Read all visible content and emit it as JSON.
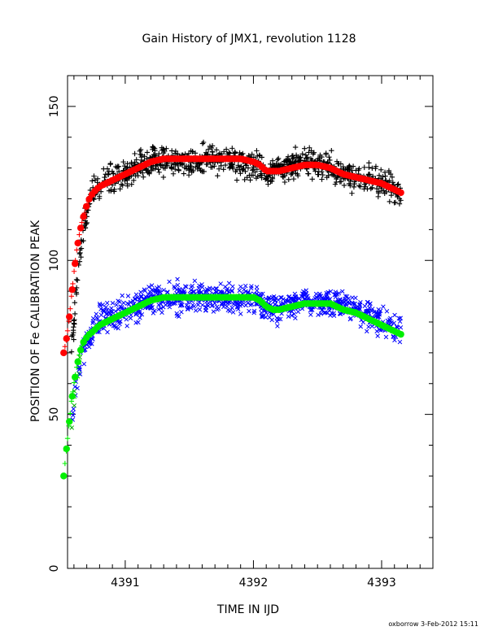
{
  "chart_data": {
    "type": "scatter",
    "title": "Gain History of JMX1, revolution 1128",
    "xlabel": "TIME IN IJD",
    "ylabel": "POSITION OF Fe CALIBRATION PEAK",
    "xlim": [
      4390.55,
      4393.4
    ],
    "ylim": [
      0,
      160
    ],
    "xticks": [
      4391,
      4392,
      4393
    ],
    "xtick_labels": [
      "4391",
      "4392",
      "4393"
    ],
    "yticks": [
      0,
      50,
      100,
      150
    ],
    "ytick_labels": [
      "0",
      "50",
      "100",
      "150"
    ],
    "grid": false,
    "legend": "none",
    "footer": "oxborrow 3-Feb-2012 15:11",
    "colors": {
      "upper_points": "#000000",
      "upper_fit": "#ff0000",
      "lower_points": "#0000ff",
      "lower_fit": "#00ee00",
      "lower_early_points": "#00aa00"
    },
    "series": [
      {
        "marker": "plus",
        "color": "#000000",
        "scatter": 3.5,
        "x": [
          4390.58,
          4390.6,
          4390.62,
          4390.64,
          4390.66,
          4390.68,
          4390.7,
          4390.72,
          4390.75,
          4390.8,
          4390.9,
          4391.0,
          4391.1,
          4391.2,
          4391.3,
          4391.4,
          4391.5,
          4391.6,
          4391.7,
          4391.8,
          4391.9,
          4392.0,
          4392.05,
          4392.1,
          4392.15,
          4392.2,
          4392.3,
          4392.4,
          4392.5,
          4392.6,
          4392.7,
          4392.8,
          4392.9,
          4393.0,
          4393.1,
          4393.15
        ],
        "y": [
          72,
          80,
          90,
          99,
          107,
          112,
          116,
          119,
          122,
          124,
          126,
          128,
          130,
          132,
          133,
          132,
          132,
          133,
          133,
          133,
          132,
          131,
          130,
          128,
          129,
          130,
          131,
          132,
          131,
          130,
          128,
          127,
          126,
          125,
          123,
          122
        ]
      },
      {
        "marker": "x",
        "color": "#0000ff",
        "scatter": 3.5,
        "x": [
          4390.58,
          4390.6,
          4390.62,
          4390.64,
          4390.66,
          4390.68,
          4390.7,
          4390.72,
          4390.75,
          4390.8,
          4390.9,
          4391.0,
          4391.1,
          4391.2,
          4391.3,
          4391.4,
          4391.5,
          4391.6,
          4391.7,
          4391.8,
          4391.9,
          4392.0,
          4392.05,
          4392.1,
          4392.15,
          4392.2,
          4392.3,
          4392.4,
          4392.5,
          4392.6,
          4392.7,
          4392.8,
          4392.9,
          4393.0,
          4393.1,
          4393.15
        ],
        "y": [
          45,
          55,
          62,
          67,
          70,
          72,
          74,
          76,
          78,
          80,
          82,
          84,
          85,
          87,
          88,
          88,
          88,
          88,
          88,
          88,
          88,
          88,
          87,
          85,
          84,
          85,
          86,
          87,
          87,
          86,
          85,
          84,
          82,
          80,
          78,
          77
        ]
      },
      {
        "marker": "plus",
        "color": "#ff0000",
        "scatter": 0,
        "x": [
          4390.52,
          4390.54,
          4390.56,
          4390.58,
          4390.6,
          4390.62,
          4390.64,
          4390.66,
          4390.68,
          4390.7,
          4390.72,
          4390.75,
          4390.8,
          4390.9,
          4391.0,
          4391.1,
          4391.2,
          4391.3,
          4391.4,
          4391.5,
          4391.6,
          4391.7,
          4391.8,
          4391.9,
          4392.0,
          4392.05,
          4392.1,
          4392.15,
          4392.2,
          4392.3,
          4392.4,
          4392.5,
          4392.6,
          4392.7,
          4392.8,
          4392.9,
          4393.0,
          4393.1,
          4393.15
        ],
        "y": [
          70,
          74,
          80,
          88,
          96,
          103,
          108,
          112,
          115,
          118,
          120,
          122,
          124,
          126,
          128,
          130,
          132,
          133,
          133,
          133,
          133,
          133,
          133,
          133,
          132,
          131,
          129,
          129,
          129,
          130,
          131,
          131,
          130,
          128,
          127,
          126,
          125,
          123,
          122
        ]
      },
      {
        "marker": "plus",
        "color": "#00ee00",
        "scatter": 0,
        "x": [
          4390.52,
          4390.54,
          4390.56,
          4390.58,
          4390.6,
          4390.62,
          4390.64,
          4390.66,
          4390.68,
          4390.7,
          4390.72,
          4390.75,
          4390.8,
          4390.9,
          4391.0,
          4391.1,
          4391.2,
          4391.3,
          4391.4,
          4391.5,
          4391.6,
          4391.7,
          4391.8,
          4391.9,
          4392.0,
          4392.05,
          4392.1,
          4392.15,
          4392.2,
          4392.3,
          4392.4,
          4392.5,
          4392.6,
          4392.7,
          4392.8,
          4392.9,
          4393.0,
          4393.1,
          4393.15
        ],
        "y": [
          30,
          38,
          46,
          54,
          60,
          65,
          69,
          72,
          74,
          75,
          76,
          77,
          79,
          81,
          83,
          85,
          87,
          88,
          88,
          88,
          88,
          88,
          88,
          88,
          88,
          87,
          85,
          84,
          84,
          85,
          86,
          86,
          86,
          84,
          83,
          81,
          79,
          77,
          76
        ]
      }
    ]
  }
}
